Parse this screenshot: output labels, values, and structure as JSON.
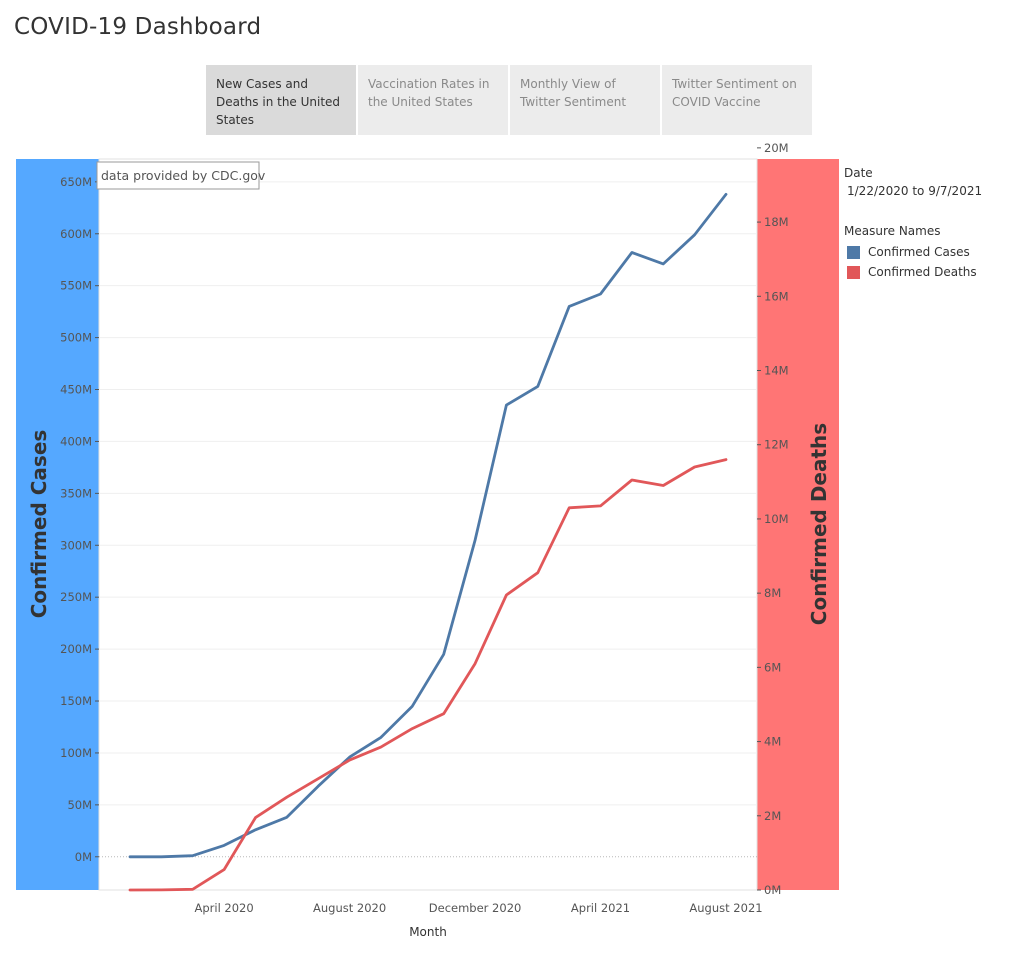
{
  "page": {
    "title": "COVID-19 Dashboard"
  },
  "tabs": [
    {
      "label": "New Cases and Deaths in the United States",
      "active": true
    },
    {
      "label": "Vaccination Rates in the United States",
      "active": false
    },
    {
      "label": "Monthly View of Twitter Sentiment",
      "active": false
    },
    {
      "label": "Twitter Sentiment on COVID Vaccine",
      "active": false
    }
  ],
  "annotation": "data provided by CDC.gov",
  "legend": {
    "date_title": "Date",
    "date_range": "1/22/2020 to 9/7/2021",
    "measure_title": "Measure Names",
    "items": [
      {
        "label": "Confirmed Cases",
        "color": "#4e79a7"
      },
      {
        "label": "Confirmed Deaths",
        "color": "#e15759"
      }
    ]
  },
  "colors": {
    "left_band": "#55a8ff",
    "right_band": "#ff7575",
    "cases": "#4e79a7",
    "deaths": "#e15759"
  },
  "chart_data": {
    "type": "line",
    "xlabel": "Month",
    "ylabel": "Confirmed Cases",
    "y2label": "Confirmed Deaths",
    "x": [
      "Jan 2020",
      "Feb 2020",
      "Mar 2020",
      "Apr 2020",
      "May 2020",
      "Jun 2020",
      "Jul 2020",
      "Aug 2020",
      "Sep 2020",
      "Oct 2020",
      "Nov 2020",
      "Dec 2020",
      "Jan 2021",
      "Feb 2021",
      "Mar 2021",
      "Apr 2021",
      "May 2021",
      "Jun 2021",
      "Jul 2021",
      "Aug 2021"
    ],
    "x_ticks": [
      {
        "index": 3,
        "label": "April 2020"
      },
      {
        "index": 7,
        "label": "August 2020"
      },
      {
        "index": 11,
        "label": "December 2020"
      },
      {
        "index": 15,
        "label": "April 2021"
      },
      {
        "index": 19,
        "label": "August 2021"
      }
    ],
    "y_ticks": [
      "0M",
      "50M",
      "100M",
      "150M",
      "200M",
      "250M",
      "300M",
      "350M",
      "400M",
      "450M",
      "500M",
      "550M",
      "600M",
      "650M"
    ],
    "y2_ticks": [
      "0M",
      "2M",
      "4M",
      "6M",
      "8M",
      "10M",
      "12M",
      "14M",
      "16M",
      "18M",
      "20M"
    ],
    "ylim": [
      -32,
      672
    ],
    "y2lim": [
      0,
      19.7
    ],
    "series": [
      {
        "name": "Confirmed Cases",
        "axis": "left",
        "values": [
          0,
          0,
          1,
          11,
          26,
          38,
          68,
          96,
          115,
          145,
          195,
          305,
          435,
          453,
          530,
          542,
          582,
          571,
          599,
          638
        ]
      },
      {
        "name": "Confirmed Deaths",
        "axis": "right",
        "values": [
          0.001,
          0.002,
          0.02,
          0.55,
          1.95,
          2.5,
          3.0,
          3.5,
          3.85,
          4.35,
          4.75,
          6.1,
          7.95,
          8.55,
          10.3,
          10.35,
          11.05,
          10.9,
          11.4,
          11.6
        ]
      }
    ]
  }
}
